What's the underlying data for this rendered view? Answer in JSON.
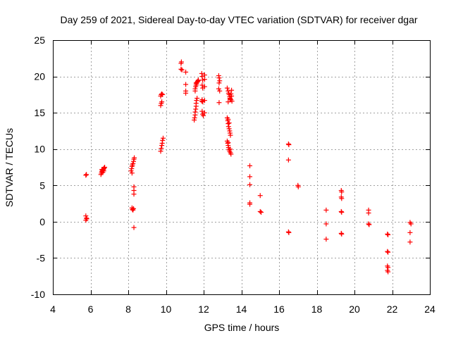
{
  "chart_data": {
    "type": "scatter",
    "title": "Day 259 of 2021, Sidereal Day-to-day VTEC variation (SDTVAR) for receiver dgar",
    "xlabel": "GPS time / hours",
    "ylabel": "SDTVAR / TECUs",
    "xlim": [
      4,
      24
    ],
    "ylim": [
      -10,
      25
    ],
    "xticks": [
      4,
      6,
      8,
      10,
      12,
      14,
      16,
      18,
      20,
      22,
      24
    ],
    "yticks": [
      -10,
      -5,
      0,
      5,
      10,
      15,
      20,
      25
    ],
    "xtick_labels": [
      "4",
      "6",
      "8",
      "10",
      "12",
      "14",
      "16",
      "18",
      "20",
      "22",
      "24"
    ],
    "ytick_labels": [
      "-10",
      "-5",
      "0",
      "5",
      "10",
      "15",
      "20",
      "25"
    ],
    "grid": true,
    "marker": "+",
    "color": "#ff0000",
    "series": [
      {
        "name": "dgar",
        "points": [
          [
            5.75,
            6.4
          ],
          [
            5.78,
            6.5
          ],
          [
            5.75,
            0.8
          ],
          [
            5.78,
            0.5
          ],
          [
            5.75,
            0.2
          ],
          [
            5.8,
            0.4
          ],
          [
            6.55,
            6.5
          ],
          [
            6.58,
            6.7
          ],
          [
            6.6,
            6.9
          ],
          [
            6.62,
            7.0
          ],
          [
            6.65,
            7.1
          ],
          [
            6.68,
            7.2
          ],
          [
            6.7,
            7.3
          ],
          [
            6.72,
            7.4
          ],
          [
            6.75,
            7.5
          ],
          [
            6.6,
            7.2
          ],
          [
            6.65,
            6.8
          ],
          [
            6.7,
            7.0
          ],
          [
            8.15,
            7.0
          ],
          [
            8.18,
            7.3
          ],
          [
            8.2,
            7.6
          ],
          [
            8.22,
            7.8
          ],
          [
            8.25,
            8.0
          ],
          [
            8.28,
            8.3
          ],
          [
            8.3,
            8.6
          ],
          [
            8.32,
            8.8
          ],
          [
            8.2,
            6.7
          ],
          [
            8.3,
            4.8
          ],
          [
            8.3,
            4.3
          ],
          [
            8.3,
            3.8
          ],
          [
            8.2,
            1.9
          ],
          [
            8.22,
            1.7
          ],
          [
            8.25,
            1.6
          ],
          [
            8.28,
            1.8
          ],
          [
            8.3,
            -0.8
          ],
          [
            9.72,
            9.7
          ],
          [
            9.75,
            10.1
          ],
          [
            9.78,
            10.5
          ],
          [
            9.8,
            10.8
          ],
          [
            9.82,
            11.2
          ],
          [
            9.85,
            11.5
          ],
          [
            9.72,
            16.0
          ],
          [
            9.75,
            16.3
          ],
          [
            9.78,
            16.5
          ],
          [
            9.72,
            17.3
          ],
          [
            9.75,
            17.5
          ],
          [
            9.78,
            17.6
          ],
          [
            9.82,
            17.5
          ],
          [
            10.8,
            21.8
          ],
          [
            10.82,
            22.0
          ],
          [
            10.8,
            21.0
          ],
          [
            10.85,
            20.9
          ],
          [
            11.05,
            20.6
          ],
          [
            11.05,
            18.9
          ],
          [
            11.05,
            18.0
          ],
          [
            11.05,
            17.7
          ],
          [
            11.5,
            14.0
          ],
          [
            11.52,
            14.3
          ],
          [
            11.55,
            14.7
          ],
          [
            11.55,
            15.1
          ],
          [
            11.58,
            15.5
          ],
          [
            11.6,
            15.9
          ],
          [
            11.6,
            16.3
          ],
          [
            11.62,
            16.7
          ],
          [
            11.65,
            17.0
          ],
          [
            11.55,
            18.3
          ],
          [
            11.58,
            18.6
          ],
          [
            11.6,
            18.8
          ],
          [
            11.62,
            19.0
          ],
          [
            11.65,
            19.2
          ],
          [
            11.68,
            19.3
          ],
          [
            11.7,
            19.4
          ],
          [
            11.72,
            19.5
          ],
          [
            11.6,
            19.1
          ],
          [
            11.55,
            18.0
          ],
          [
            11.9,
            20.4
          ],
          [
            11.92,
            20.0
          ],
          [
            11.95,
            19.5
          ],
          [
            11.92,
            18.8
          ],
          [
            11.95,
            18.4
          ],
          [
            11.9,
            16.6
          ],
          [
            11.92,
            16.8
          ],
          [
            11.95,
            16.5
          ],
          [
            11.92,
            15.2
          ],
          [
            11.95,
            14.8
          ],
          [
            11.98,
            14.6
          ],
          [
            12.05,
            20.2
          ],
          [
            12.05,
            19.6
          ],
          [
            12.05,
            18.6
          ],
          [
            12.05,
            16.7
          ],
          [
            12.05,
            15.0
          ],
          [
            12.8,
            20.1
          ],
          [
            12.82,
            19.8
          ],
          [
            12.85,
            19.4
          ],
          [
            12.82,
            19.1
          ],
          [
            12.8,
            18.3
          ],
          [
            12.85,
            18.0
          ],
          [
            12.82,
            16.4
          ],
          [
            13.25,
            18.4
          ],
          [
            13.3,
            18.0
          ],
          [
            13.32,
            17.7
          ],
          [
            13.35,
            17.5
          ],
          [
            13.38,
            17.2
          ],
          [
            13.4,
            17.0
          ],
          [
            13.45,
            16.8
          ],
          [
            13.48,
            17.3
          ],
          [
            13.5,
            16.6
          ],
          [
            13.3,
            16.5
          ],
          [
            13.4,
            16.9
          ],
          [
            13.45,
            17.6
          ],
          [
            13.48,
            18.1
          ],
          [
            13.25,
            14.3
          ],
          [
            13.28,
            13.9
          ],
          [
            13.3,
            13.5
          ],
          [
            13.32,
            13.1
          ],
          [
            13.35,
            12.8
          ],
          [
            13.38,
            12.5
          ],
          [
            13.4,
            12.2
          ],
          [
            13.42,
            11.9
          ],
          [
            13.35,
            13.6
          ],
          [
            13.3,
            14.1
          ],
          [
            13.25,
            11.1
          ],
          [
            13.28,
            10.8
          ],
          [
            13.3,
            10.5
          ],
          [
            13.32,
            10.2
          ],
          [
            13.35,
            9.9
          ],
          [
            13.38,
            9.7
          ],
          [
            13.42,
            9.5
          ],
          [
            13.45,
            9.3
          ],
          [
            13.3,
            10.9
          ],
          [
            13.4,
            10.0
          ],
          [
            14.45,
            7.7
          ],
          [
            14.45,
            6.2
          ],
          [
            14.45,
            5.1
          ],
          [
            14.45,
            2.6
          ],
          [
            14.45,
            2.4
          ],
          [
            15.0,
            3.6
          ],
          [
            15.0,
            1.4
          ],
          [
            15.05,
            1.3
          ],
          [
            16.5,
            10.7
          ],
          [
            16.52,
            10.6
          ],
          [
            16.5,
            8.5
          ],
          [
            16.5,
            -1.4
          ],
          [
            16.52,
            -1.5
          ],
          [
            17.0,
            5.0
          ],
          [
            17.02,
            4.8
          ],
          [
            18.5,
            1.6
          ],
          [
            18.5,
            -0.3
          ],
          [
            18.5,
            -2.4
          ],
          [
            19.3,
            4.3
          ],
          [
            19.32,
            4.1
          ],
          [
            19.3,
            3.4
          ],
          [
            19.32,
            3.2
          ],
          [
            19.3,
            1.4
          ],
          [
            19.32,
            1.3
          ],
          [
            19.3,
            -1.6
          ],
          [
            19.32,
            -1.7
          ],
          [
            20.75,
            1.6
          ],
          [
            20.75,
            1.2
          ],
          [
            20.75,
            -0.3
          ],
          [
            20.78,
            -0.4
          ],
          [
            21.75,
            -1.7
          ],
          [
            21.78,
            -1.8
          ],
          [
            21.75,
            -4.1
          ],
          [
            21.78,
            -4.2
          ],
          [
            21.75,
            -6.1
          ],
          [
            21.78,
            -6.3
          ],
          [
            21.75,
            -6.7
          ],
          [
            21.78,
            -6.9
          ],
          [
            22.95,
            -0.1
          ],
          [
            23.0,
            -0.3
          ],
          [
            22.95,
            -1.5
          ],
          [
            22.95,
            -2.8
          ]
        ]
      }
    ]
  }
}
